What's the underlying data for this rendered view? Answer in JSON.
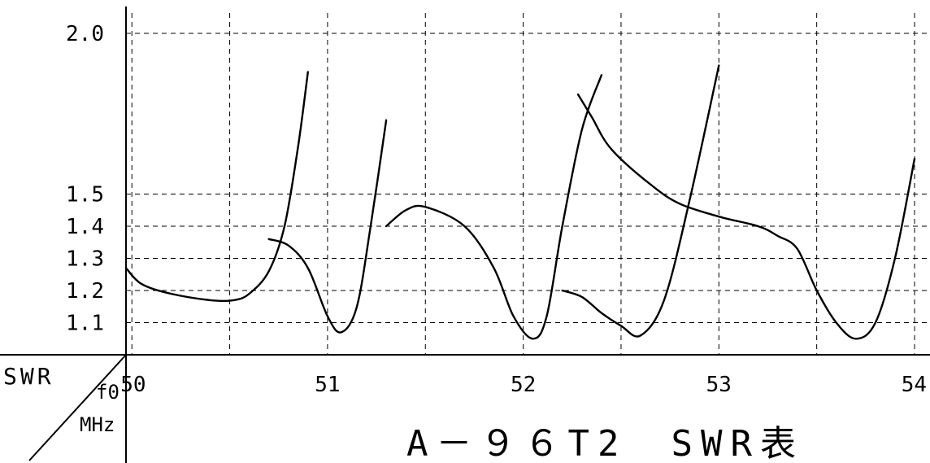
{
  "chart_data": {
    "type": "line",
    "title": "A－９６T2　SWR表",
    "ylabel": "SWR",
    "xlabel": "f0",
    "xunit": "MHz",
    "xlim": [
      49.97,
      54.0
    ],
    "ylim": [
      1.0,
      2.0
    ],
    "x_ticks": [
      50,
      51,
      52,
      53,
      54
    ],
    "x_tick_labels": [
      "50",
      "51",
      "52",
      "53",
      "54"
    ],
    "x_grid": [
      50,
      50.5,
      51,
      51.5,
      52,
      52.5,
      53,
      53.5,
      54
    ],
    "y_ticks": [
      2.0,
      1.5,
      1.4,
      1.3,
      1.2,
      1.1
    ],
    "y_tick_labels": [
      "2.0",
      "1.5",
      "1.4",
      "1.3",
      "1.2",
      "1.1"
    ],
    "grid": true,
    "series": [
      {
        "points": [
          [
            49.97,
            1.27
          ],
          [
            50.05,
            1.22
          ],
          [
            50.2,
            1.19
          ],
          [
            50.4,
            1.17
          ],
          [
            50.52,
            1.17
          ],
          [
            50.6,
            1.19
          ],
          [
            50.7,
            1.26
          ],
          [
            50.78,
            1.4
          ],
          [
            50.85,
            1.65
          ],
          [
            50.9,
            1.88
          ]
        ]
      },
      {
        "points": [
          [
            50.7,
            1.36
          ],
          [
            50.8,
            1.34
          ],
          [
            50.9,
            1.27
          ],
          [
            51.0,
            1.12
          ],
          [
            51.07,
            1.07
          ],
          [
            51.15,
            1.15
          ],
          [
            51.22,
            1.4
          ],
          [
            51.3,
            1.73
          ]
        ]
      },
      {
        "points": [
          [
            51.3,
            1.4
          ],
          [
            51.4,
            1.45
          ],
          [
            51.5,
            1.46
          ],
          [
            51.7,
            1.4
          ],
          [
            51.85,
            1.27
          ],
          [
            51.95,
            1.12
          ],
          [
            52.05,
            1.05
          ],
          [
            52.12,
            1.12
          ],
          [
            52.2,
            1.4
          ],
          [
            52.3,
            1.7
          ],
          [
            52.4,
            1.87
          ]
        ]
      },
      {
        "points": [
          [
            52.2,
            1.2
          ],
          [
            52.3,
            1.18
          ],
          [
            52.4,
            1.13
          ],
          [
            52.5,
            1.09
          ],
          [
            52.6,
            1.06
          ],
          [
            52.72,
            1.17
          ],
          [
            52.85,
            1.48
          ],
          [
            53.0,
            1.9
          ]
        ]
      },
      {
        "points": [
          [
            52.28,
            1.81
          ],
          [
            52.35,
            1.74
          ],
          [
            52.45,
            1.64
          ],
          [
            52.65,
            1.53
          ],
          [
            52.8,
            1.47
          ],
          [
            53.0,
            1.43
          ],
          [
            53.2,
            1.4
          ],
          [
            53.3,
            1.37
          ],
          [
            53.4,
            1.33
          ],
          [
            53.5,
            1.2
          ],
          [
            53.6,
            1.1
          ],
          [
            53.7,
            1.05
          ],
          [
            53.8,
            1.1
          ],
          [
            53.9,
            1.3
          ],
          [
            54.0,
            1.61
          ]
        ]
      }
    ]
  }
}
